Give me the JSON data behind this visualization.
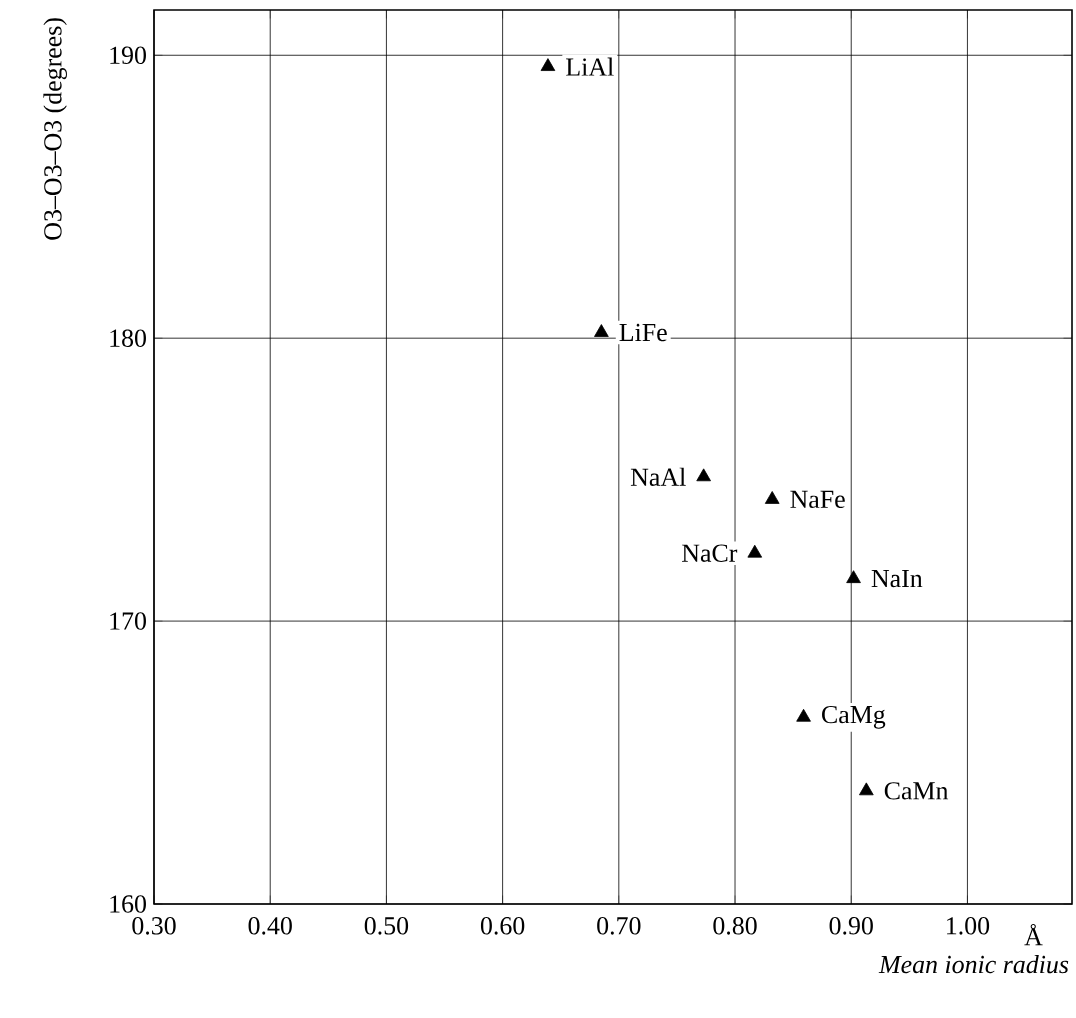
{
  "chart_data": {
    "type": "scatter",
    "xlabel": "*Mean ionic radius*",
    "ylabel": "O3–O3–O3  (degrees)",
    "annotations": [
      "Å"
    ],
    "series": [
      {
        "name": "LiAl",
        "color": "#000000",
        "x": [
          0.639
        ],
        "values": [
          189.6
        ]
      },
      {
        "name": "LiFe",
        "color": "#000000",
        "x": [
          0.685
        ],
        "values": [
          180.2
        ]
      },
      {
        "name": "NaAl",
        "color": "#000000",
        "x": [
          0.773
        ],
        "values": [
          175.1
        ]
      },
      {
        "name": "NaFe",
        "color": "#000000",
        "x": [
          0.832
        ],
        "values": [
          174.3
        ]
      },
      {
        "name": "NaCr",
        "color": "#000000",
        "x": [
          0.817
        ],
        "values": [
          172.4
        ]
      },
      {
        "name": "NaIn",
        "color": "#000000",
        "x": [
          0.902
        ],
        "values": [
          171.5
        ]
      },
      {
        "name": "CaMg",
        "color": "#000000",
        "x": [
          0.859
        ],
        "values": [
          166.6
        ]
      },
      {
        "name": "CaMn",
        "color": "#000000",
        "x": [
          0.913
        ],
        "values": [
          164.0
        ]
      }
    ],
    "xlim": [
      0.3,
      1.09
    ],
    "ylim": [
      160,
      191.6
    ],
    "xticks": [
      {
        "value": 0.3,
        "label": "0.30"
      },
      {
        "value": 0.4,
        "label": "0.40"
      },
      {
        "value": 0.5,
        "label": "0.50"
      },
      {
        "value": 0.6,
        "label": "0.60"
      },
      {
        "value": 0.7,
        "label": "0.70"
      },
      {
        "value": 0.8,
        "label": "0.80"
      },
      {
        "value": 0.9,
        "label": "0.90"
      },
      {
        "value": 1.0,
        "label": "1.00"
      }
    ],
    "yticks": [
      160,
      170,
      180,
      190
    ],
    "grid": true,
    "marker": "triangle"
  }
}
